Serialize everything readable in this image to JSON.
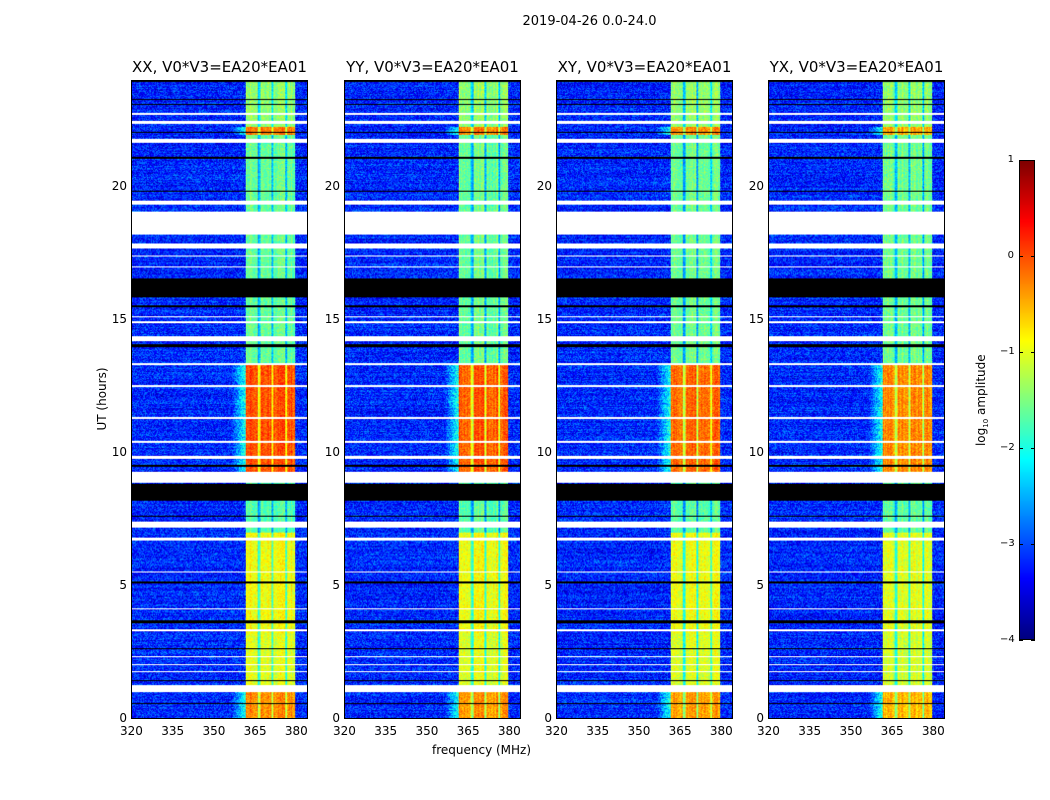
{
  "chart_data": {
    "type": "heatmap",
    "title": "2019-04-26 0.0-24.0",
    "xlabel": "frequency (MHz)",
    "ylabel": "UT (hours)",
    "xlim": [
      320,
      384.4
    ],
    "ylim": [
      0,
      24
    ],
    "xticks": [
      "320",
      "335",
      "350",
      "365",
      "380"
    ],
    "xtick_values": [
      320,
      335,
      350,
      365,
      380
    ],
    "yticks": [
      "0",
      "5",
      "10",
      "15",
      "20"
    ],
    "ytick_values": [
      0,
      5,
      10,
      15,
      20
    ],
    "colorbar": {
      "label": "log10 amplitude",
      "label_main": "log",
      "label_sub": "10",
      "label_rest": " amplitude",
      "colormap": "jet",
      "range": [
        -4,
        1
      ],
      "ticks": [
        "1",
        "0",
        "−1",
        "−2",
        "−3",
        "−4"
      ],
      "tick_values": [
        1,
        0,
        -1,
        -2,
        -3,
        -4
      ]
    },
    "panels": [
      {
        "title": "XX, V0*V3=EA20*EA01",
        "seed": 11,
        "rfi_strength": 1.0
      },
      {
        "title": "YY, V0*V3=EA20*EA01",
        "seed": 23,
        "rfi_strength": 0.95
      },
      {
        "title": "XY, V0*V3=EA20*EA01",
        "seed": 37,
        "rfi_strength": 0.9
      },
      {
        "title": "YX, V0*V3=EA20*EA01",
        "seed": 53,
        "rfi_strength": 0.8
      }
    ],
    "background_level": -3.2,
    "rfi_band_mhz": [
      361.5,
      380
    ],
    "rfi_gaps_mhz": [
      366.5,
      371.5,
      376.5
    ],
    "rfi_levels": [
      {
        "hours": [
          0,
          1.0
        ],
        "level": -0.3
      },
      {
        "hours": [
          1.0,
          3.2
        ],
        "level": -1.0
      },
      {
        "hours": [
          3.2,
          7.0
        ],
        "level": -0.9
      },
      {
        "hours": [
          7.0,
          9.0
        ],
        "level": -1.7
      },
      {
        "hours": [
          9.0,
          13.3
        ],
        "level": 0.0
      },
      {
        "hours": [
          13.3,
          22.0
        ],
        "level": -1.6
      },
      {
        "hours": [
          22.0,
          22.3
        ],
        "level": -0.2
      },
      {
        "hours": [
          22.3,
          24
        ],
        "level": -1.4
      }
    ],
    "flagged_hours": [
      [
        0.98,
        1.25
      ],
      [
        1.75,
        1.8
      ],
      [
        2.0,
        2.05
      ],
      [
        2.3,
        2.35
      ],
      [
        3.3,
        3.35
      ],
      [
        4.1,
        4.15
      ],
      [
        5.5,
        5.55
      ],
      [
        6.7,
        6.8
      ],
      [
        7.2,
        7.4
      ],
      [
        8.9,
        9.3
      ],
      [
        9.8,
        9.9
      ],
      [
        10.4,
        10.45
      ],
      [
        11.3,
        11.35
      ],
      [
        12.5,
        12.55
      ],
      [
        13.3,
        13.4
      ],
      [
        14.2,
        14.4
      ],
      [
        14.9,
        14.95
      ],
      [
        15.1,
        15.15
      ],
      [
        17.0,
        17.05
      ],
      [
        17.4,
        17.45
      ],
      [
        17.7,
        17.9
      ],
      [
        18.25,
        19.1
      ],
      [
        19.35,
        19.5
      ],
      [
        21.7,
        21.85
      ],
      [
        22.4,
        22.5
      ],
      [
        22.75,
        22.8
      ]
    ],
    "dropout_hours": [
      [
        0.55,
        0.6
      ],
      [
        1.4,
        1.45
      ],
      [
        2.6,
        2.65
      ],
      [
        3.6,
        3.7
      ],
      [
        5.1,
        5.15
      ],
      [
        7.6,
        7.65
      ],
      [
        8.2,
        8.85
      ],
      [
        9.5,
        9.55
      ],
      [
        14.0,
        14.1
      ],
      [
        15.85,
        16.6
      ],
      [
        15.5,
        15.55
      ],
      [
        19.85,
        19.9
      ],
      [
        21.1,
        21.15
      ],
      [
        22.05,
        22.1
      ],
      [
        23.1,
        23.15
      ],
      [
        23.3,
        23.35
      ],
      [
        24.0,
        24.0
      ]
    ]
  }
}
